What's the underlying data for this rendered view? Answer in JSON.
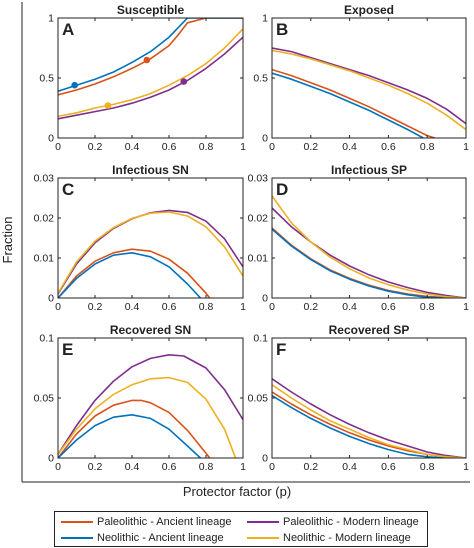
{
  "figure": {
    "ylabel": "Fraction",
    "xlabel": "Protector factor (p)"
  },
  "legend": [
    {
      "label": "Paleolithic - Ancient lineage",
      "color": "#D95319"
    },
    {
      "label": "Paleolithic - Modern lineage",
      "color": "#7E2F8E"
    },
    {
      "label": "Neolithic - Ancient lineage",
      "color": "#0072BD"
    },
    {
      "label": "Neolithic - Modern lineage",
      "color": "#EDB120"
    }
  ],
  "chart_data": [
    {
      "panel": "A",
      "type": "line",
      "title": "Susceptible",
      "xlim": [
        0,
        1
      ],
      "ylim": [
        0,
        1
      ],
      "xticks": [
        "0",
        "0.2",
        "0.4",
        "0.6",
        "0.8",
        "1"
      ],
      "yticks": [
        {
          "v": 0,
          "t": "0"
        },
        {
          "v": 0.5,
          "t": "0.5"
        },
        {
          "v": 1,
          "t": "1"
        }
      ],
      "series": [
        {
          "name": "Paleolithic - Ancient lineage",
          "color": "#D95319",
          "x": [
            0,
            0.1,
            0.2,
            0.3,
            0.4,
            0.5,
            0.6,
            0.65,
            0.7,
            0.8,
            0.9,
            1
          ],
          "y": [
            0.36,
            0.4,
            0.45,
            0.51,
            0.58,
            0.66,
            0.77,
            0.86,
            0.96,
            1,
            1,
            1
          ],
          "marker": [
            0.48,
            0.65
          ]
        },
        {
          "name": "Neolithic - Ancient lineage",
          "color": "#0072BD",
          "x": [
            0,
            0.1,
            0.2,
            0.3,
            0.4,
            0.5,
            0.6,
            0.65,
            0.7,
            0.8,
            0.9,
            1
          ],
          "y": [
            0.39,
            0.44,
            0.49,
            0.55,
            0.63,
            0.72,
            0.84,
            0.92,
            1,
            1,
            1,
            1
          ],
          "marker": [
            0.09,
            0.44
          ]
        },
        {
          "name": "Paleolithic - Modern lineage",
          "color": "#7E2F8E",
          "x": [
            0,
            0.1,
            0.2,
            0.3,
            0.4,
            0.5,
            0.6,
            0.7,
            0.8,
            0.9,
            1
          ],
          "y": [
            0.16,
            0.19,
            0.22,
            0.25,
            0.29,
            0.34,
            0.4,
            0.48,
            0.58,
            0.7,
            0.84
          ],
          "marker": [
            0.68,
            0.47
          ]
        },
        {
          "name": "Neolithic - Modern lineage",
          "color": "#EDB120",
          "x": [
            0,
            0.1,
            0.2,
            0.3,
            0.4,
            0.5,
            0.6,
            0.7,
            0.8,
            0.9,
            1
          ],
          "y": [
            0.18,
            0.21,
            0.25,
            0.28,
            0.32,
            0.37,
            0.44,
            0.52,
            0.62,
            0.75,
            0.91
          ],
          "marker": [
            0.27,
            0.27
          ]
        }
      ]
    },
    {
      "panel": "B",
      "type": "line",
      "title": "Exposed",
      "xlim": [
        0,
        1
      ],
      "ylim": [
        0,
        1
      ],
      "xticks": [
        "0",
        "0.2",
        "0.4",
        "0.6",
        "0.8",
        "1"
      ],
      "yticks": [
        {
          "v": 0,
          "t": "0"
        },
        {
          "v": 0.5,
          "t": "0.5"
        },
        {
          "v": 1,
          "t": "1"
        }
      ],
      "series": [
        {
          "name": "Paleolithic - Ancient lineage",
          "color": "#D95319",
          "x": [
            0,
            0.1,
            0.2,
            0.3,
            0.4,
            0.5,
            0.6,
            0.7,
            0.8,
            0.84
          ],
          "y": [
            0.57,
            0.52,
            0.46,
            0.4,
            0.33,
            0.26,
            0.18,
            0.1,
            0.02,
            0
          ]
        },
        {
          "name": "Neolithic - Ancient lineage",
          "color": "#0072BD",
          "x": [
            0,
            0.1,
            0.2,
            0.3,
            0.4,
            0.5,
            0.6,
            0.7,
            0.78
          ],
          "y": [
            0.54,
            0.49,
            0.43,
            0.37,
            0.3,
            0.23,
            0.15,
            0.07,
            0
          ]
        },
        {
          "name": "Paleolithic - Modern lineage",
          "color": "#7E2F8E",
          "x": [
            0,
            0.1,
            0.2,
            0.3,
            0.4,
            0.5,
            0.6,
            0.7,
            0.8,
            0.9,
            1
          ],
          "y": [
            0.75,
            0.72,
            0.67,
            0.62,
            0.57,
            0.52,
            0.46,
            0.4,
            0.33,
            0.24,
            0.12
          ]
        },
        {
          "name": "Neolithic - Modern lineage",
          "color": "#EDB120",
          "x": [
            0,
            0.1,
            0.2,
            0.3,
            0.4,
            0.5,
            0.6,
            0.7,
            0.8,
            0.9,
            1
          ],
          "y": [
            0.73,
            0.7,
            0.66,
            0.61,
            0.56,
            0.5,
            0.44,
            0.37,
            0.29,
            0.19,
            0.07
          ]
        }
      ]
    },
    {
      "panel": "C",
      "type": "line",
      "title": "Infectious SN",
      "xlim": [
        0,
        1
      ],
      "ylim": [
        0,
        0.03
      ],
      "xticks": [
        "0",
        "0.2",
        "0.4",
        "0.6",
        "0.8",
        "1"
      ],
      "yticks": [
        {
          "v": 0,
          "t": "0"
        },
        {
          "v": 0.01,
          "t": "0.01"
        },
        {
          "v": 0.02,
          "t": "0.02"
        },
        {
          "v": 0.03,
          "t": "0.03"
        }
      ],
      "series": [
        {
          "name": "Paleolithic - Ancient lineage",
          "color": "#D95319",
          "x": [
            0,
            0.1,
            0.2,
            0.3,
            0.4,
            0.5,
            0.6,
            0.7,
            0.8,
            0.82
          ],
          "y": [
            0,
            0.0055,
            0.0092,
            0.0113,
            0.0122,
            0.0117,
            0.0097,
            0.0062,
            0.0012,
            0
          ]
        },
        {
          "name": "Neolithic - Ancient lineage",
          "color": "#0072BD",
          "x": [
            0,
            0.1,
            0.2,
            0.3,
            0.4,
            0.5,
            0.6,
            0.7,
            0.77
          ],
          "y": [
            0,
            0.0049,
            0.0085,
            0.0107,
            0.0113,
            0.0103,
            0.0078,
            0.0035,
            0
          ]
        },
        {
          "name": "Paleolithic - Modern lineage",
          "color": "#7E2F8E",
          "x": [
            0,
            0.1,
            0.2,
            0.3,
            0.4,
            0.5,
            0.6,
            0.7,
            0.8,
            0.9,
            1
          ],
          "y": [
            0.001,
            0.0085,
            0.0138,
            0.0174,
            0.0198,
            0.0213,
            0.0219,
            0.0214,
            0.0192,
            0.0148,
            0.0078
          ]
        },
        {
          "name": "Neolithic - Modern lineage",
          "color": "#EDB120",
          "x": [
            0,
            0.1,
            0.2,
            0.3,
            0.4,
            0.5,
            0.6,
            0.7,
            0.8,
            0.9,
            1
          ],
          "y": [
            0.0012,
            0.009,
            0.0142,
            0.0176,
            0.0199,
            0.0212,
            0.0215,
            0.0205,
            0.0178,
            0.0128,
            0.0055
          ]
        }
      ]
    },
    {
      "panel": "D",
      "type": "line",
      "title": "Infectious SP",
      "xlim": [
        0,
        1
      ],
      "ylim": [
        0,
        0.03
      ],
      "xticks": [
        "0",
        "0.2",
        "0.4",
        "0.6",
        "0.8",
        "1"
      ],
      "yticks": [
        {
          "v": 0,
          "t": "0"
        },
        {
          "v": 0.01,
          "t": "0.01"
        },
        {
          "v": 0.02,
          "t": "0.02"
        },
        {
          "v": 0.03,
          "t": "0.03"
        }
      ],
      "series": [
        {
          "name": "Paleolithic - Ancient lineage",
          "color": "#D95319",
          "x": [
            0,
            0.1,
            0.2,
            0.3,
            0.4,
            0.5,
            0.6,
            0.7,
            0.8,
            0.9,
            0.95
          ],
          "y": [
            0.0175,
            0.0132,
            0.0098,
            0.007,
            0.0049,
            0.0032,
            0.0019,
            0.001,
            0.0004,
            0.0001,
            0
          ]
        },
        {
          "name": "Neolithic - Ancient lineage",
          "color": "#0072BD",
          "x": [
            0,
            0.1,
            0.2,
            0.3,
            0.4,
            0.5,
            0.6,
            0.7,
            0.8,
            0.9
          ],
          "y": [
            0.0172,
            0.013,
            0.0096,
            0.0068,
            0.0047,
            0.003,
            0.0017,
            0.0008,
            0.0002,
            0
          ]
        },
        {
          "name": "Paleolithic - Modern lineage",
          "color": "#7E2F8E",
          "x": [
            0,
            0.1,
            0.2,
            0.3,
            0.4,
            0.5,
            0.6,
            0.7,
            0.8,
            0.9,
            1
          ],
          "y": [
            0.0225,
            0.0178,
            0.014,
            0.0107,
            0.008,
            0.0058,
            0.004,
            0.0026,
            0.0014,
            0.0006,
            0
          ]
        },
        {
          "name": "Neolithic - Modern lineage",
          "color": "#EDB120",
          "x": [
            0,
            0.1,
            0.2,
            0.3,
            0.4,
            0.5,
            0.6,
            0.7,
            0.8,
            0.9,
            1
          ],
          "y": [
            0.0255,
            0.0188,
            0.014,
            0.0102,
            0.0073,
            0.005,
            0.0033,
            0.002,
            0.001,
            0.0003,
            0
          ]
        }
      ]
    },
    {
      "panel": "E",
      "type": "line",
      "title": "Recovered SN",
      "xlim": [
        0,
        1
      ],
      "ylim": [
        0,
        0.1
      ],
      "xticks": [
        "0",
        "0.2",
        "0.4",
        "0.6",
        "0.8",
        "1"
      ],
      "yticks": [
        {
          "v": 0,
          "t": "0"
        },
        {
          "v": 0.05,
          "t": "0.05"
        },
        {
          "v": 0.1,
          "t": "0.1"
        }
      ],
      "series": [
        {
          "name": "Paleolithic - Ancient lineage",
          "color": "#D95319",
          "x": [
            0,
            0.1,
            0.2,
            0.3,
            0.4,
            0.45,
            0.5,
            0.6,
            0.7,
            0.8,
            0.82
          ],
          "y": [
            0,
            0.02,
            0.035,
            0.044,
            0.048,
            0.048,
            0.046,
            0.038,
            0.023,
            0.004,
            0
          ]
        },
        {
          "name": "Neolithic - Ancient lineage",
          "color": "#0072BD",
          "x": [
            0,
            0.1,
            0.2,
            0.3,
            0.4,
            0.5,
            0.6,
            0.7,
            0.77
          ],
          "y": [
            0,
            0.015,
            0.027,
            0.034,
            0.036,
            0.033,
            0.024,
            0.01,
            0
          ]
        },
        {
          "name": "Paleolithic - Modern lineage",
          "color": "#7E2F8E",
          "x": [
            0,
            0.1,
            0.2,
            0.3,
            0.4,
            0.5,
            0.6,
            0.68,
            0.8,
            0.9,
            1
          ],
          "y": [
            0.003,
            0.027,
            0.048,
            0.064,
            0.076,
            0.083,
            0.086,
            0.085,
            0.075,
            0.057,
            0.032
          ]
        },
        {
          "name": "Neolithic - Modern lineage",
          "color": "#EDB120",
          "x": [
            0,
            0.1,
            0.2,
            0.3,
            0.4,
            0.5,
            0.6,
            0.7,
            0.8,
            0.9,
            0.96
          ],
          "y": [
            0.003,
            0.024,
            0.041,
            0.053,
            0.061,
            0.066,
            0.067,
            0.063,
            0.049,
            0.024,
            0
          ]
        }
      ]
    },
    {
      "panel": "F",
      "type": "line",
      "title": "Recovered SP",
      "xlim": [
        0,
        1
      ],
      "ylim": [
        0,
        0.1
      ],
      "xticks": [
        "0",
        "0.2",
        "0.4",
        "0.6",
        "0.8",
        "1"
      ],
      "yticks": [
        {
          "v": 0,
          "t": "0"
        },
        {
          "v": 0.05,
          "t": "0.05"
        },
        {
          "v": 0.1,
          "t": "0.1"
        }
      ],
      "series": [
        {
          "name": "Paleolithic - Ancient lineage",
          "color": "#D95319",
          "x": [
            0,
            0.1,
            0.2,
            0.3,
            0.4,
            0.5,
            0.6,
            0.7,
            0.8,
            0.9,
            0.95
          ],
          "y": [
            0.055,
            0.045,
            0.036,
            0.028,
            0.021,
            0.015,
            0.01,
            0.006,
            0.003,
            0.001,
            0
          ]
        },
        {
          "name": "Neolithic - Ancient lineage",
          "color": "#0072BD",
          "x": [
            0,
            0.1,
            0.2,
            0.3,
            0.4,
            0.5,
            0.6,
            0.7,
            0.8,
            0.9
          ],
          "y": [
            0.052,
            0.042,
            0.033,
            0.025,
            0.018,
            0.012,
            0.007,
            0.003,
            0.001,
            0
          ]
        },
        {
          "name": "Paleolithic - Modern lineage",
          "color": "#7E2F8E",
          "x": [
            0,
            0.1,
            0.2,
            0.3,
            0.4,
            0.5,
            0.6,
            0.7,
            0.8,
            0.9,
            1
          ],
          "y": [
            0.066,
            0.055,
            0.045,
            0.036,
            0.028,
            0.021,
            0.015,
            0.01,
            0.005,
            0.002,
            0
          ]
        },
        {
          "name": "Neolithic - Modern lineage",
          "color": "#EDB120",
          "x": [
            0,
            0.1,
            0.2,
            0.3,
            0.4,
            0.5,
            0.6,
            0.7,
            0.8,
            0.9,
            1
          ],
          "y": [
            0.061,
            0.05,
            0.04,
            0.031,
            0.024,
            0.017,
            0.011,
            0.007,
            0.003,
            0.001,
            0
          ]
        }
      ]
    }
  ]
}
